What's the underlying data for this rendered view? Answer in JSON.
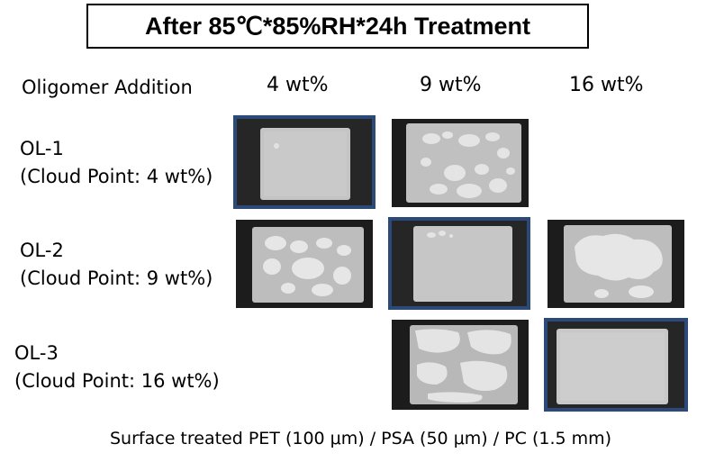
{
  "title": "After 85℃*85%RH*24h Treatment",
  "header": {
    "row_label": "Oligomer Addition",
    "columns": [
      "4 wt%",
      "9 wt%",
      "16 wt%"
    ]
  },
  "rows": [
    {
      "name": "OL-1",
      "cloud_point": "(Cloud Point: 4 wt%)"
    },
    {
      "name": "OL-2",
      "cloud_point": "(Cloud Point: 9 wt%)"
    },
    {
      "name": "OL-3",
      "cloud_point": "(Cloud Point: 16 wt%)"
    }
  ],
  "samples": [
    {
      "row": "OL-1",
      "column": "4 wt%",
      "appearance": "clear",
      "highlighted": true
    },
    {
      "row": "OL-1",
      "column": "9 wt%",
      "appearance": "spotted",
      "highlighted": false
    },
    {
      "row": "OL-2",
      "column": "4 wt%",
      "appearance": "spotted",
      "highlighted": false
    },
    {
      "row": "OL-2",
      "column": "9 wt%",
      "appearance": "clear",
      "highlighted": true
    },
    {
      "row": "OL-2",
      "column": "16 wt%",
      "appearance": "spotted",
      "highlighted": false
    },
    {
      "row": "OL-3",
      "column": "9 wt%",
      "appearance": "spotted",
      "highlighted": false
    },
    {
      "row": "OL-3",
      "column": "16 wt%",
      "appearance": "clear",
      "highlighted": true
    }
  ],
  "footer": "Surface treated PET (100 μm) / PSA (50 μm) / PC (1.5 mm)",
  "colors": {
    "highlight_border": "#2b4a7a",
    "film": "#c9c9c9",
    "spot": "#e6e6e6"
  }
}
